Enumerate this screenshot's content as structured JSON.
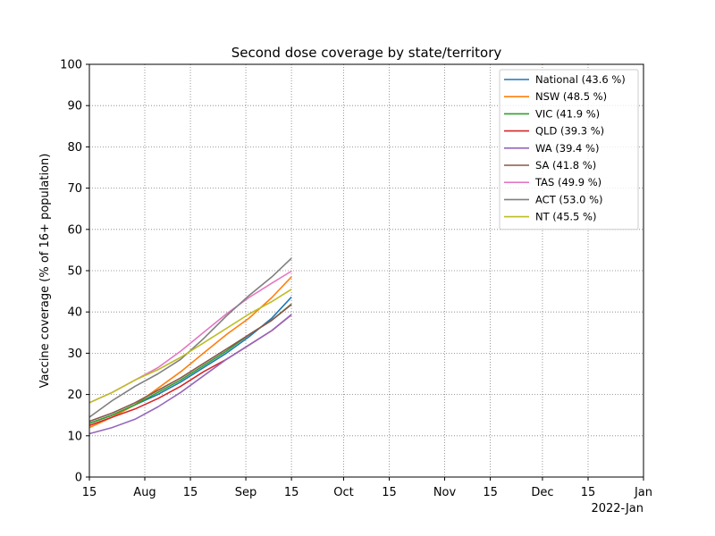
{
  "chart_data": {
    "type": "line",
    "title": "Second dose coverage by state/territory",
    "xlabel": "",
    "ylabel": "Vaccine coverage (% of 16+ population)",
    "x_offset_label": "2022-Jan",
    "xlim": [
      "2021-07-15",
      "2022-01-01"
    ],
    "ylim": [
      0,
      100
    ],
    "yticks": [
      0,
      10,
      20,
      30,
      40,
      50,
      60,
      70,
      80,
      90,
      100
    ],
    "xticks": [
      {
        "date": "2021-07-15",
        "label": "15"
      },
      {
        "date": "2021-08-01",
        "label": "Aug"
      },
      {
        "date": "2021-08-15",
        "label": "15"
      },
      {
        "date": "2021-09-01",
        "label": "Sep"
      },
      {
        "date": "2021-09-15",
        "label": "15"
      },
      {
        "date": "2021-10-01",
        "label": "Oct"
      },
      {
        "date": "2021-10-15",
        "label": "15"
      },
      {
        "date": "2021-11-01",
        "label": "Nov"
      },
      {
        "date": "2021-11-15",
        "label": "15"
      },
      {
        "date": "2021-12-01",
        "label": "Dec"
      },
      {
        "date": "2021-12-15",
        "label": "15"
      },
      {
        "date": "2022-01-01",
        "label": "Jan"
      }
    ],
    "grid": true,
    "legend_position": "top-right",
    "x": [
      "2021-07-15",
      "2021-07-22",
      "2021-07-29",
      "2021-08-05",
      "2021-08-12",
      "2021-08-19",
      "2021-08-26",
      "2021-09-02",
      "2021-09-09",
      "2021-09-15"
    ],
    "series": [
      {
        "name": "National (43.6 %)",
        "color": "#1f77b4",
        "values": [
          13.0,
          15.0,
          17.5,
          20.0,
          23.0,
          26.5,
          30.0,
          34.0,
          38.5,
          43.6
        ]
      },
      {
        "name": "NSW (48.5 %)",
        "color": "#ff7f0e",
        "values": [
          12.0,
          14.5,
          17.5,
          21.5,
          25.5,
          30.0,
          34.5,
          38.5,
          43.5,
          48.5
        ]
      },
      {
        "name": "VIC (41.9 %)",
        "color": "#2ca02c",
        "values": [
          13.0,
          15.0,
          17.5,
          20.5,
          23.5,
          27.0,
          30.5,
          34.5,
          38.0,
          41.9
        ]
      },
      {
        "name": "QLD (39.3 %)",
        "color": "#d62728",
        "values": [
          12.5,
          14.5,
          16.5,
          19.0,
          22.0,
          25.5,
          28.5,
          32.0,
          35.5,
          39.3
        ]
      },
      {
        "name": "WA (39.4 %)",
        "color": "#9467bd",
        "values": [
          10.5,
          12.0,
          14.0,
          17.0,
          20.5,
          24.5,
          28.5,
          32.0,
          35.5,
          39.4
        ]
      },
      {
        "name": "SA (41.8 %)",
        "color": "#8c564b",
        "values": [
          13.5,
          15.5,
          18.0,
          21.0,
          24.0,
          27.5,
          31.0,
          34.5,
          38.0,
          41.8
        ]
      },
      {
        "name": "TAS (49.9 %)",
        "color": "#e377c2",
        "values": [
          18.0,
          20.5,
          23.5,
          26.5,
          30.5,
          35.0,
          39.5,
          43.5,
          47.0,
          49.9
        ]
      },
      {
        "name": "ACT (53.0 %)",
        "color": "#7f7f7f",
        "values": [
          14.5,
          18.5,
          22.0,
          25.0,
          28.5,
          33.5,
          39.0,
          44.0,
          48.5,
          53.0
        ]
      },
      {
        "name": "NT (45.5 %)",
        "color": "#bcbd22",
        "values": [
          18.0,
          20.5,
          23.5,
          26.0,
          29.0,
          32.5,
          36.0,
          39.5,
          42.5,
          45.5
        ]
      }
    ]
  }
}
